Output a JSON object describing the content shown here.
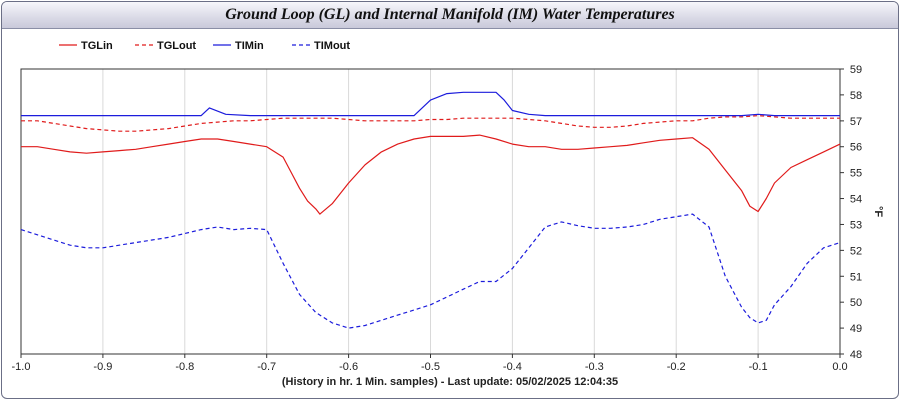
{
  "title": "Ground Loop (GL) and Internal Manifold (IM)  Water Temperatures",
  "footer": "(History in hr. 1 Min. samples) - Last update: 05/02/2025 12:04:35",
  "chart_data": {
    "type": "line",
    "title": "Ground Loop (GL) and Internal Manifold (IM)  Water Temperatures",
    "xlabel": "(History in hr. 1 Min. samples) - Last update: 05/02/2025 12:04:35",
    "ylabel": "°F",
    "xlim": [
      -1.0,
      0.0
    ],
    "ylim": [
      48,
      59
    ],
    "x_ticks": [
      "-1.0",
      "-0.9",
      "-0.8",
      "-0.7",
      "-0.6",
      "-0.5",
      "-0.4",
      "-0.3",
      "-0.2",
      "-0.1",
      "0.0"
    ],
    "y_ticks": [
      "48",
      "49",
      "50",
      "51",
      "52",
      "53",
      "54",
      "55",
      "56",
      "57",
      "58",
      "59"
    ],
    "grid": "vertical",
    "legend_position": "top-left",
    "series": [
      {
        "name": "TGLin",
        "color": "#e01b1b",
        "style": "solid",
        "points": [
          [
            -1.0,
            56.0
          ],
          [
            -0.98,
            56.0
          ],
          [
            -0.96,
            55.9
          ],
          [
            -0.94,
            55.8
          ],
          [
            -0.92,
            55.75
          ],
          [
            -0.9,
            55.8
          ],
          [
            -0.88,
            55.85
          ],
          [
            -0.86,
            55.9
          ],
          [
            -0.84,
            56.0
          ],
          [
            -0.82,
            56.1
          ],
          [
            -0.8,
            56.2
          ],
          [
            -0.78,
            56.3
          ],
          [
            -0.76,
            56.3
          ],
          [
            -0.74,
            56.2
          ],
          [
            -0.72,
            56.1
          ],
          [
            -0.7,
            56.0
          ],
          [
            -0.68,
            55.6
          ],
          [
            -0.67,
            55.0
          ],
          [
            -0.66,
            54.4
          ],
          [
            -0.65,
            53.9
          ],
          [
            -0.64,
            53.6
          ],
          [
            -0.635,
            53.4
          ],
          [
            -0.62,
            53.8
          ],
          [
            -0.6,
            54.6
          ],
          [
            -0.58,
            55.3
          ],
          [
            -0.56,
            55.8
          ],
          [
            -0.54,
            56.1
          ],
          [
            -0.52,
            56.3
          ],
          [
            -0.5,
            56.4
          ],
          [
            -0.48,
            56.4
          ],
          [
            -0.46,
            56.4
          ],
          [
            -0.44,
            56.45
          ],
          [
            -0.42,
            56.3
          ],
          [
            -0.4,
            56.1
          ],
          [
            -0.38,
            56.0
          ],
          [
            -0.36,
            56.0
          ],
          [
            -0.34,
            55.9
          ],
          [
            -0.32,
            55.9
          ],
          [
            -0.3,
            55.95
          ],
          [
            -0.28,
            56.0
          ],
          [
            -0.26,
            56.05
          ],
          [
            -0.24,
            56.15
          ],
          [
            -0.22,
            56.25
          ],
          [
            -0.2,
            56.3
          ],
          [
            -0.18,
            56.35
          ],
          [
            -0.16,
            55.9
          ],
          [
            -0.14,
            55.1
          ],
          [
            -0.12,
            54.3
          ],
          [
            -0.11,
            53.7
          ],
          [
            -0.1,
            53.5
          ],
          [
            -0.09,
            54.0
          ],
          [
            -0.08,
            54.6
          ],
          [
            -0.06,
            55.2
          ],
          [
            -0.04,
            55.5
          ],
          [
            -0.02,
            55.8
          ],
          [
            0.0,
            56.1
          ]
        ]
      },
      {
        "name": "TGLout",
        "color": "#e01b1b",
        "style": "dashed",
        "points": [
          [
            -1.0,
            57.0
          ],
          [
            -0.98,
            57.0
          ],
          [
            -0.96,
            56.9
          ],
          [
            -0.94,
            56.8
          ],
          [
            -0.92,
            56.7
          ],
          [
            -0.9,
            56.65
          ],
          [
            -0.88,
            56.6
          ],
          [
            -0.86,
            56.6
          ],
          [
            -0.84,
            56.65
          ],
          [
            -0.82,
            56.7
          ],
          [
            -0.8,
            56.8
          ],
          [
            -0.78,
            56.9
          ],
          [
            -0.76,
            56.95
          ],
          [
            -0.74,
            57.0
          ],
          [
            -0.72,
            57.0
          ],
          [
            -0.7,
            57.05
          ],
          [
            -0.68,
            57.1
          ],
          [
            -0.66,
            57.1
          ],
          [
            -0.64,
            57.1
          ],
          [
            -0.62,
            57.1
          ],
          [
            -0.6,
            57.05
          ],
          [
            -0.58,
            57.0
          ],
          [
            -0.56,
            57.0
          ],
          [
            -0.54,
            57.0
          ],
          [
            -0.52,
            57.0
          ],
          [
            -0.5,
            57.05
          ],
          [
            -0.48,
            57.05
          ],
          [
            -0.46,
            57.1
          ],
          [
            -0.44,
            57.1
          ],
          [
            -0.42,
            57.1
          ],
          [
            -0.4,
            57.1
          ],
          [
            -0.38,
            57.05
          ],
          [
            -0.36,
            57.0
          ],
          [
            -0.34,
            56.9
          ],
          [
            -0.32,
            56.8
          ],
          [
            -0.3,
            56.75
          ],
          [
            -0.28,
            56.75
          ],
          [
            -0.26,
            56.8
          ],
          [
            -0.24,
            56.9
          ],
          [
            -0.22,
            56.95
          ],
          [
            -0.2,
            57.0
          ],
          [
            -0.18,
            57.0
          ],
          [
            -0.16,
            57.1
          ],
          [
            -0.14,
            57.15
          ],
          [
            -0.12,
            57.15
          ],
          [
            -0.1,
            57.2
          ],
          [
            -0.08,
            57.15
          ],
          [
            -0.06,
            57.1
          ],
          [
            -0.04,
            57.1
          ],
          [
            -0.02,
            57.1
          ],
          [
            0.0,
            57.1
          ]
        ]
      },
      {
        "name": "TIMin",
        "color": "#1c1cdc",
        "style": "solid",
        "points": [
          [
            -1.0,
            57.2
          ],
          [
            -0.78,
            57.2
          ],
          [
            -0.77,
            57.5
          ],
          [
            -0.75,
            57.25
          ],
          [
            -0.72,
            57.2
          ],
          [
            -0.52,
            57.2
          ],
          [
            -0.5,
            57.8
          ],
          [
            -0.48,
            58.05
          ],
          [
            -0.46,
            58.1
          ],
          [
            -0.44,
            58.1
          ],
          [
            -0.42,
            58.1
          ],
          [
            -0.41,
            57.8
          ],
          [
            -0.4,
            57.4
          ],
          [
            -0.38,
            57.25
          ],
          [
            -0.36,
            57.2
          ],
          [
            -0.12,
            57.2
          ],
          [
            -0.1,
            57.25
          ],
          [
            -0.08,
            57.2
          ],
          [
            0.0,
            57.2
          ]
        ]
      },
      {
        "name": "TIMout",
        "color": "#1c1cdc",
        "style": "dashed",
        "points": [
          [
            -1.0,
            52.8
          ],
          [
            -0.98,
            52.6
          ],
          [
            -0.96,
            52.4
          ],
          [
            -0.94,
            52.2
          ],
          [
            -0.92,
            52.1
          ],
          [
            -0.9,
            52.1
          ],
          [
            -0.88,
            52.2
          ],
          [
            -0.86,
            52.3
          ],
          [
            -0.84,
            52.4
          ],
          [
            -0.82,
            52.5
          ],
          [
            -0.8,
            52.65
          ],
          [
            -0.78,
            52.8
          ],
          [
            -0.76,
            52.9
          ],
          [
            -0.74,
            52.8
          ],
          [
            -0.72,
            52.85
          ],
          [
            -0.7,
            52.8
          ],
          [
            -0.68,
            51.5
          ],
          [
            -0.66,
            50.3
          ],
          [
            -0.64,
            49.6
          ],
          [
            -0.62,
            49.2
          ],
          [
            -0.6,
            49.0
          ],
          [
            -0.58,
            49.1
          ],
          [
            -0.56,
            49.3
          ],
          [
            -0.54,
            49.5
          ],
          [
            -0.52,
            49.7
          ],
          [
            -0.5,
            49.9
          ],
          [
            -0.48,
            50.2
          ],
          [
            -0.46,
            50.5
          ],
          [
            -0.44,
            50.8
          ],
          [
            -0.42,
            50.8
          ],
          [
            -0.4,
            51.3
          ],
          [
            -0.38,
            52.1
          ],
          [
            -0.36,
            52.9
          ],
          [
            -0.34,
            53.1
          ],
          [
            -0.32,
            52.95
          ],
          [
            -0.3,
            52.85
          ],
          [
            -0.28,
            52.85
          ],
          [
            -0.26,
            52.9
          ],
          [
            -0.24,
            53.0
          ],
          [
            -0.22,
            53.2
          ],
          [
            -0.2,
            53.3
          ],
          [
            -0.18,
            53.4
          ],
          [
            -0.16,
            52.9
          ],
          [
            -0.14,
            51.0
          ],
          [
            -0.12,
            49.8
          ],
          [
            -0.11,
            49.4
          ],
          [
            -0.1,
            49.2
          ],
          [
            -0.09,
            49.3
          ],
          [
            -0.08,
            49.9
          ],
          [
            -0.06,
            50.6
          ],
          [
            -0.04,
            51.5
          ],
          [
            -0.02,
            52.1
          ],
          [
            0.0,
            52.3
          ]
        ]
      }
    ]
  }
}
